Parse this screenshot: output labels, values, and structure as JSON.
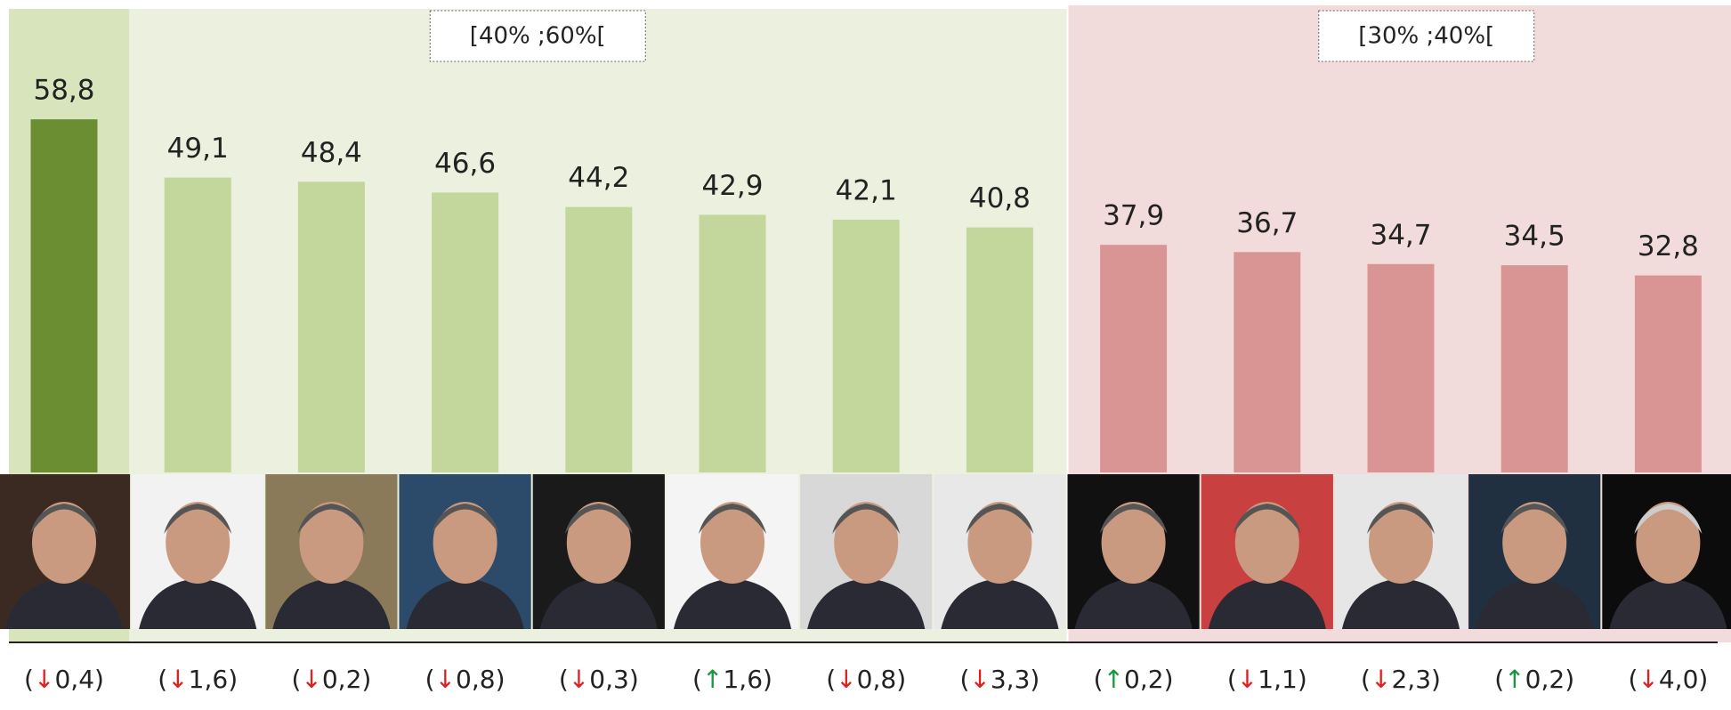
{
  "chart_data": {
    "type": "bar",
    "ylim": [
      0,
      60
    ],
    "highlight_color": "#6b8e33",
    "highlight_background": "#d8e4bc",
    "series": [
      {
        "name": "[40% ;60%[",
        "color": "#c3d69b",
        "background": "#ebf1de",
        "values": [
          58.8,
          49.1,
          48.4,
          46.6,
          44.2,
          42.9,
          42.1,
          40.8
        ],
        "value_labels": [
          "58,8",
          "49,1",
          "48,4",
          "46,6",
          "44,2",
          "42,9",
          "42,1",
          "40,8"
        ],
        "changes": [
          {
            "value": -0.4,
            "label": "(↓0,4)"
          },
          {
            "value": -1.6,
            "label": "(↓1,6)"
          },
          {
            "value": -0.2,
            "label": "(↓0,2)"
          },
          {
            "value": -0.8,
            "label": "(↓0,8)"
          },
          {
            "value": -0.3,
            "label": "(↓0,3)"
          },
          {
            "value": 1.6,
            "label": "(↑1,6)"
          },
          {
            "value": -0.8,
            "label": "(↓0,8)"
          },
          {
            "value": -3.3,
            "label": "(↓3,3)"
          }
        ]
      },
      {
        "name": "[30% ;40%[",
        "color": "#d99594",
        "background": "#f2dcdb",
        "values": [
          37.9,
          36.7,
          34.7,
          34.5,
          32.8
        ],
        "value_labels": [
          "37,9",
          "36,7",
          "34,7",
          "34,5",
          "32,8"
        ],
        "changes": [
          {
            "value": 0.2,
            "label": "(↑0,2)"
          },
          {
            "value": -1.1,
            "label": "(↓1,1)"
          },
          {
            "value": -2.3,
            "label": "(↓2,3)"
          },
          {
            "value": 0.2,
            "label": "(↑0,2)"
          },
          {
            "value": -4.0,
            "label": "(↓4,0)"
          }
        ]
      }
    ]
  }
}
